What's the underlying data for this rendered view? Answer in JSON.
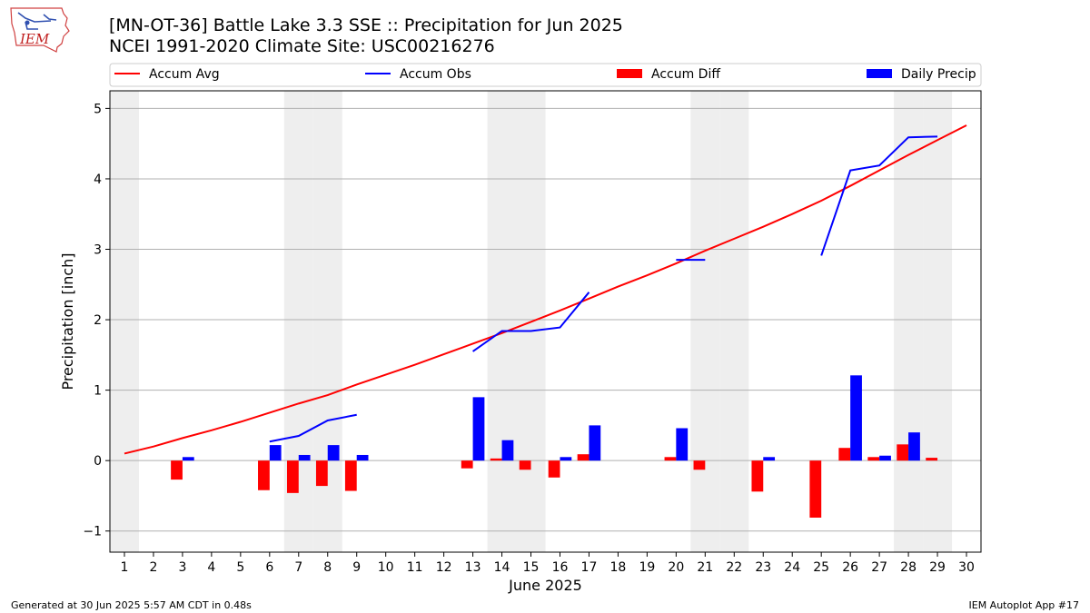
{
  "header": {
    "title_line1": "[MN-OT-36] Battle Lake 3.3 SSE :: Precipitation for Jun 2025",
    "title_line2": "NCEI 1991-2020 Climate Site: USC00216276",
    "logo_text": "IEM"
  },
  "footer": {
    "generated": "Generated at 30 Jun 2025 5:57 AM CDT in 0.48s",
    "app": "IEM Autoplot App #17"
  },
  "colors": {
    "avg": "#ff0000",
    "obs": "#0000ff",
    "diff": "#ff0000",
    "daily": "#0000ff",
    "weekend_shade": "#eeeeee",
    "grid": "#b0b0b0"
  },
  "chart_data": {
    "type": "bar",
    "xlabel": "June 2025",
    "ylabel": "Precipitation [inch]",
    "xlim": [
      0.5,
      30.5
    ],
    "ylim": [
      -1.3,
      5.25
    ],
    "yticks": [
      -1,
      0,
      1,
      2,
      3,
      4,
      5
    ],
    "ytick_labels": [
      "−1",
      "0",
      "1",
      "2",
      "3",
      "4",
      "5"
    ],
    "grid": "horizontal",
    "legend_placement": "top",
    "legend": [
      "Accum Avg",
      "Accum Obs",
      "Accum Diff",
      "Daily Precip"
    ],
    "days": [
      1,
      2,
      3,
      4,
      5,
      6,
      7,
      8,
      9,
      10,
      11,
      12,
      13,
      14,
      15,
      16,
      17,
      18,
      19,
      20,
      21,
      22,
      23,
      24,
      25,
      26,
      27,
      28,
      29,
      30
    ],
    "weekend_days": [
      1,
      7,
      8,
      14,
      15,
      21,
      22,
      28,
      29
    ],
    "series": [
      {
        "name": "Accum Avg",
        "kind": "line",
        "values": [
          0.1,
          0.2,
          0.32,
          0.43,
          0.55,
          0.68,
          0.81,
          0.93,
          1.08,
          1.22,
          1.36,
          1.51,
          1.66,
          1.81,
          1.97,
          2.13,
          2.3,
          2.47,
          2.63,
          2.8,
          2.98,
          3.15,
          3.32,
          3.5,
          3.69,
          3.9,
          4.12,
          4.34,
          4.55,
          4.76
        ]
      },
      {
        "name": "Accum Obs",
        "kind": "line",
        "values": [
          null,
          null,
          null,
          null,
          null,
          0.27,
          0.35,
          0.57,
          0.65,
          null,
          null,
          null,
          1.55,
          1.84,
          1.84,
          1.89,
          2.39,
          null,
          null,
          2.85,
          2.85,
          null,
          null,
          null,
          2.91,
          4.12,
          4.19,
          4.59,
          4.6,
          null
        ]
      },
      {
        "name": "Accum Diff",
        "kind": "bar",
        "values": [
          0,
          0,
          -0.27,
          0,
          0,
          -0.42,
          -0.46,
          -0.36,
          -0.43,
          0,
          0,
          0,
          -0.11,
          0.03,
          -0.13,
          -0.24,
          0.09,
          0,
          0,
          0.05,
          -0.13,
          0,
          -0.44,
          0,
          -0.81,
          0.18,
          0.05,
          0.23,
          0.04,
          0
        ]
      },
      {
        "name": "Daily Precip",
        "kind": "bar",
        "values": [
          0,
          0,
          0.05,
          0,
          0,
          0.22,
          0.08,
          0.22,
          0.08,
          0,
          0,
          0,
          0.9,
          0.29,
          0,
          0.05,
          0.5,
          0,
          0,
          0.46,
          0,
          0,
          0.05,
          0,
          0,
          1.21,
          0.07,
          0.4,
          0,
          0
        ]
      }
    ]
  }
}
